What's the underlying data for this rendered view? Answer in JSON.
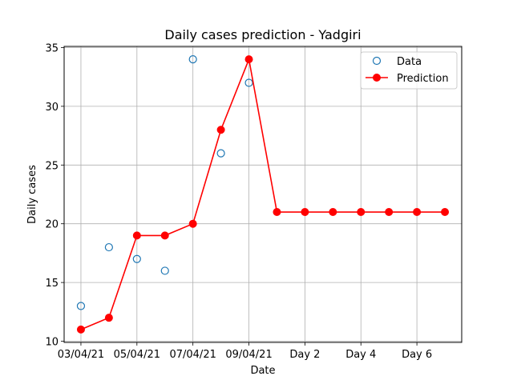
{
  "chart_data": {
    "type": "line",
    "title": "Daily cases prediction - Yadgiri",
    "xlabel": "Date",
    "ylabel": "Daily cases",
    "xlim": [
      -0.6,
      13.6
    ],
    "ylim": [
      9.9,
      35.1
    ],
    "grid": true,
    "legend_position": "top-right",
    "x_ticks": [
      {
        "pos": 0,
        "label": "03/04/21"
      },
      {
        "pos": 2,
        "label": "05/04/21"
      },
      {
        "pos": 4,
        "label": "07/04/21"
      },
      {
        "pos": 6,
        "label": "09/04/21"
      },
      {
        "pos": 8,
        "label": "Day 2"
      },
      {
        "pos": 10,
        "label": "Day 4"
      },
      {
        "pos": 12,
        "label": "Day 6"
      }
    ],
    "y_ticks": [
      10,
      15,
      20,
      25,
      30,
      35
    ],
    "series": [
      {
        "name": "Data",
        "style": "open-circle",
        "color": "#1f77b4",
        "x": [
          0,
          1,
          2,
          3,
          4,
          5,
          6
        ],
        "values": [
          13,
          18,
          17,
          16,
          34,
          26,
          32
        ]
      },
      {
        "name": "Prediction",
        "style": "line-filled-circle",
        "color": "#ff0000",
        "x": [
          0,
          1,
          2,
          3,
          4,
          5,
          6,
          7,
          8,
          9,
          10,
          11,
          12,
          13
        ],
        "values": [
          11,
          12,
          19,
          19,
          20,
          28,
          34,
          21,
          21,
          21,
          21,
          21,
          21,
          21
        ]
      }
    ]
  }
}
